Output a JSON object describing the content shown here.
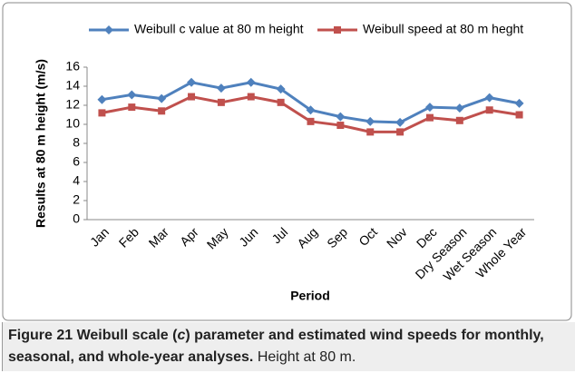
{
  "chart_data": {
    "type": "line",
    "categories": [
      "Jan",
      "Feb",
      "Mar",
      "Apr",
      "May",
      "Jun",
      "Jul",
      "Aug",
      "Sep",
      "Oct",
      "Nov",
      "Dec",
      "Dry Season",
      "Wet Season",
      "Whole Year"
    ],
    "series": [
      {
        "name": "Weibull c value at 80 m height",
        "color": "#4f81bd",
        "marker": "diamond",
        "values": [
          12.6,
          13.1,
          12.7,
          14.4,
          13.8,
          14.4,
          13.7,
          11.5,
          10.8,
          10.3,
          10.2,
          11.8,
          11.7,
          12.8,
          12.2
        ]
      },
      {
        "name": "Weibull speed at 80 m heght",
        "color": "#c0504d",
        "marker": "square",
        "values": [
          11.2,
          11.8,
          11.4,
          12.9,
          12.3,
          12.9,
          12.3,
          10.3,
          9.9,
          9.2,
          9.2,
          10.7,
          10.4,
          11.5,
          11.0
        ]
      }
    ],
    "xlabel": "Period",
    "ylabel": "Results at 80 m height (m/s)",
    "ylim": [
      0,
      16
    ],
    "yticks": [
      0,
      2,
      4,
      6,
      8,
      10,
      12,
      14,
      16
    ],
    "legend": "top"
  },
  "caption": {
    "label": "Figure 21",
    "title_before": "Weibull scale (",
    "title_italic": "c",
    "title_after": ") parameter and estimated wind speeds for monthly, seasonal, and whole-year analyses.",
    "note": "Height at 80 m."
  }
}
